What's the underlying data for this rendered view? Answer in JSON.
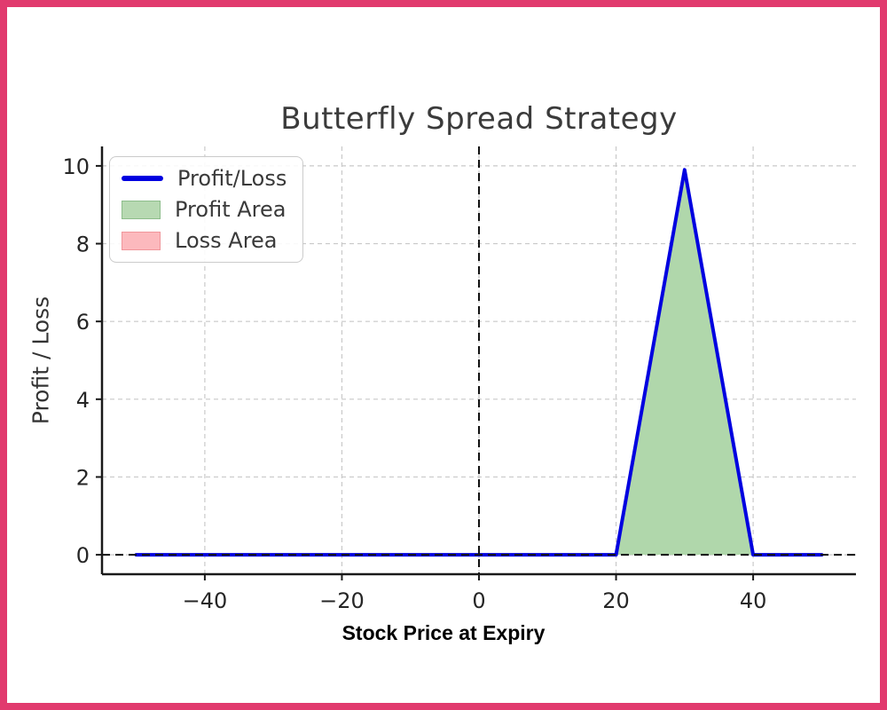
{
  "figure": {
    "border_color": "#e13a6e",
    "background_color": "#ffffff",
    "axis_color": "#1a1a1a",
    "grid_color": "#c9c9c9"
  },
  "chart_data": {
    "type": "line",
    "title": "Butterfly Spread Strategy",
    "xlabel": "Stock Price at Expiry",
    "ylabel": "Profit / Loss",
    "xlim": [
      -55,
      55
    ],
    "ylim": [
      -0.5,
      10.5
    ],
    "xticks": [
      -40,
      -20,
      0,
      20,
      40
    ],
    "yticks": [
      0,
      2,
      4,
      6,
      8,
      10
    ],
    "grid": true,
    "grid_style": "dashed",
    "legend_position": "upper-left",
    "series": [
      {
        "name": "Profit/Loss",
        "type": "line",
        "color": "#0000e0",
        "width": 4,
        "x": [
          -50,
          20,
          30,
          40,
          50
        ],
        "y": [
          0,
          0,
          9.9,
          0,
          0
        ]
      }
    ],
    "areas": [
      {
        "name": "Profit Area",
        "fill": "#b0d7ab",
        "polygon_x": [
          20,
          30,
          40
        ],
        "polygon_y": [
          0,
          9.9,
          0
        ]
      }
    ],
    "reference_lines": [
      {
        "axis": "y",
        "value": 0,
        "style": "dashed",
        "color": "#111111"
      },
      {
        "axis": "x",
        "value": 0,
        "style": "dashed",
        "color": "#111111"
      }
    ],
    "legend": [
      {
        "label": "Profit/Loss",
        "swatch": "line",
        "fill": "#0000e0",
        "edge": "#0000e0"
      },
      {
        "label": "Profit Area",
        "swatch": "patch",
        "fill": "#b7d9b2",
        "edge": "#8dbd8b"
      },
      {
        "label": "Loss Area",
        "swatch": "patch",
        "fill": "#fcb9bd",
        "edge": "#f0969b"
      }
    ]
  }
}
